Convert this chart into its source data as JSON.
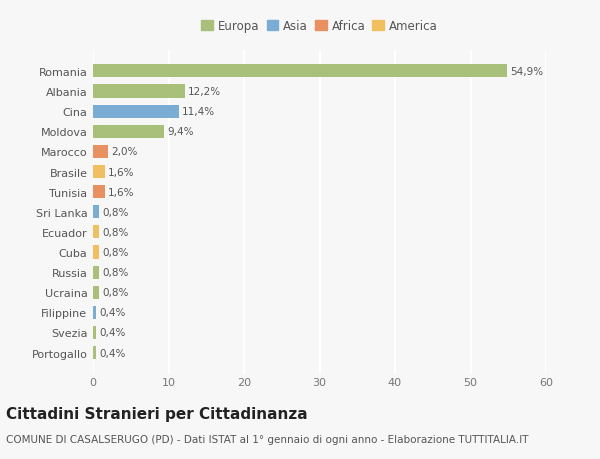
{
  "categories": [
    "Portogallo",
    "Svezia",
    "Filippine",
    "Ucraina",
    "Russia",
    "Cuba",
    "Ecuador",
    "Sri Lanka",
    "Tunisia",
    "Brasile",
    "Marocco",
    "Moldova",
    "Cina",
    "Albania",
    "Romania"
  ],
  "values": [
    0.4,
    0.4,
    0.4,
    0.8,
    0.8,
    0.8,
    0.8,
    0.8,
    1.6,
    1.6,
    2.0,
    9.4,
    11.4,
    12.2,
    54.9
  ],
  "labels": [
    "0,4%",
    "0,4%",
    "0,4%",
    "0,8%",
    "0,8%",
    "0,8%",
    "0,8%",
    "0,8%",
    "1,6%",
    "1,6%",
    "2,0%",
    "9,4%",
    "11,4%",
    "12,2%",
    "54,9%"
  ],
  "colors": [
    "#a8c07a",
    "#a8c07a",
    "#7bacd4",
    "#a8c07a",
    "#a8c07a",
    "#f0c060",
    "#f0c060",
    "#7bacd4",
    "#e89060",
    "#f0c060",
    "#e89060",
    "#a8c07a",
    "#7bacd4",
    "#a8c07a",
    "#a8c07a"
  ],
  "legend": {
    "Europa": "#a8c07a",
    "Asia": "#7bacd4",
    "Africa": "#e89060",
    "America": "#f0c060"
  },
  "xlim": [
    0,
    60
  ],
  "xticks": [
    0,
    10,
    20,
    30,
    40,
    50,
    60
  ],
  "title": "Cittadini Stranieri per Cittadinanza",
  "subtitle": "COMUNE DI CASALSERUGO (PD) - Dati ISTAT al 1° gennaio di ogni anno - Elaborazione TUTTITALIA.IT",
  "bg_color": "#f7f7f7",
  "grid_color": "#ffffff",
  "bar_height": 0.65,
  "title_fontsize": 11,
  "subtitle_fontsize": 7.5,
  "label_fontsize": 7.5,
  "tick_fontsize": 8,
  "legend_fontsize": 8.5
}
